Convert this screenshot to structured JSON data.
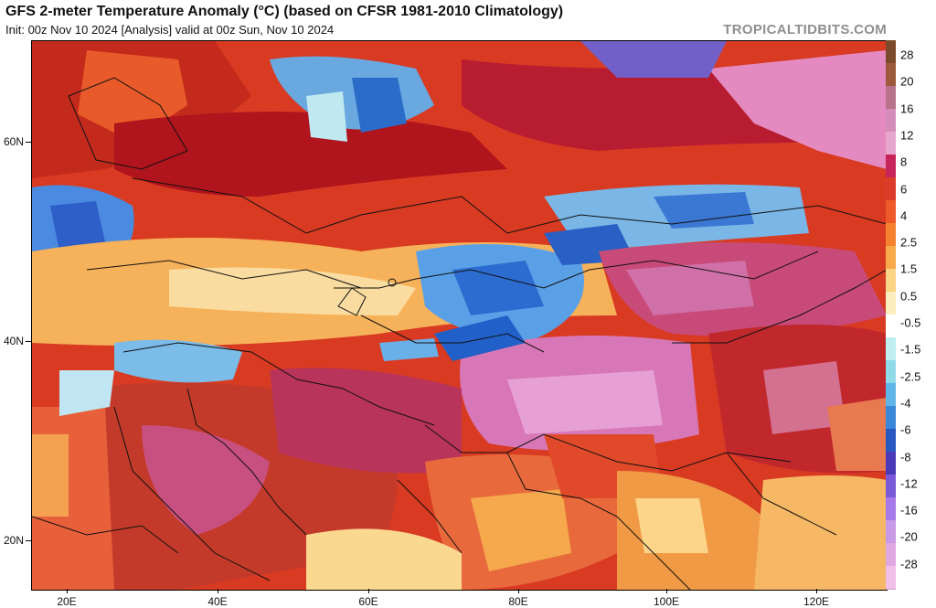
{
  "header": {
    "title": "GFS 2-meter Temperature Anomaly (°C) (based on CFSR 1981-2010 Climatology)",
    "subtitle": "Init: 00z Nov 10 2024   [Analysis]   valid at 00z Sun, Nov 10 2024",
    "brand": "TROPICALTIDBITS.COM"
  },
  "map": {
    "lat_labels": [
      "60N",
      "40N",
      "20N"
    ],
    "lon_labels": [
      "20E",
      "40E",
      "60E",
      "80E",
      "100E",
      "120E"
    ]
  },
  "colorbar": {
    "labels": [
      "28",
      "20",
      "16",
      "12",
      "8",
      "6",
      "4",
      "2.5",
      "1.5",
      "0.5",
      "-0.5",
      "-1.5",
      "-2.5",
      "-4",
      "-6",
      "-8",
      "-12",
      "-16",
      "-20",
      "-28"
    ],
    "colors": [
      "#7a4a2a",
      "#9c5a3a",
      "#b8738a",
      "#d68cb8",
      "#e7a6cc",
      "#c8245c",
      "#dc3b2a",
      "#ee5a2a",
      "#f5822e",
      "#f9aa4c",
      "#fbd485",
      "#fdeec0",
      "#ffffff",
      "#bfefef",
      "#8fd9e8",
      "#5fb4e8",
      "#3a86d8",
      "#2858c0",
      "#4a3ab8",
      "#7a5ad8",
      "#a67ae8",
      "#c89ae8",
      "#e0a8e0",
      "#f0c0e8"
    ]
  }
}
